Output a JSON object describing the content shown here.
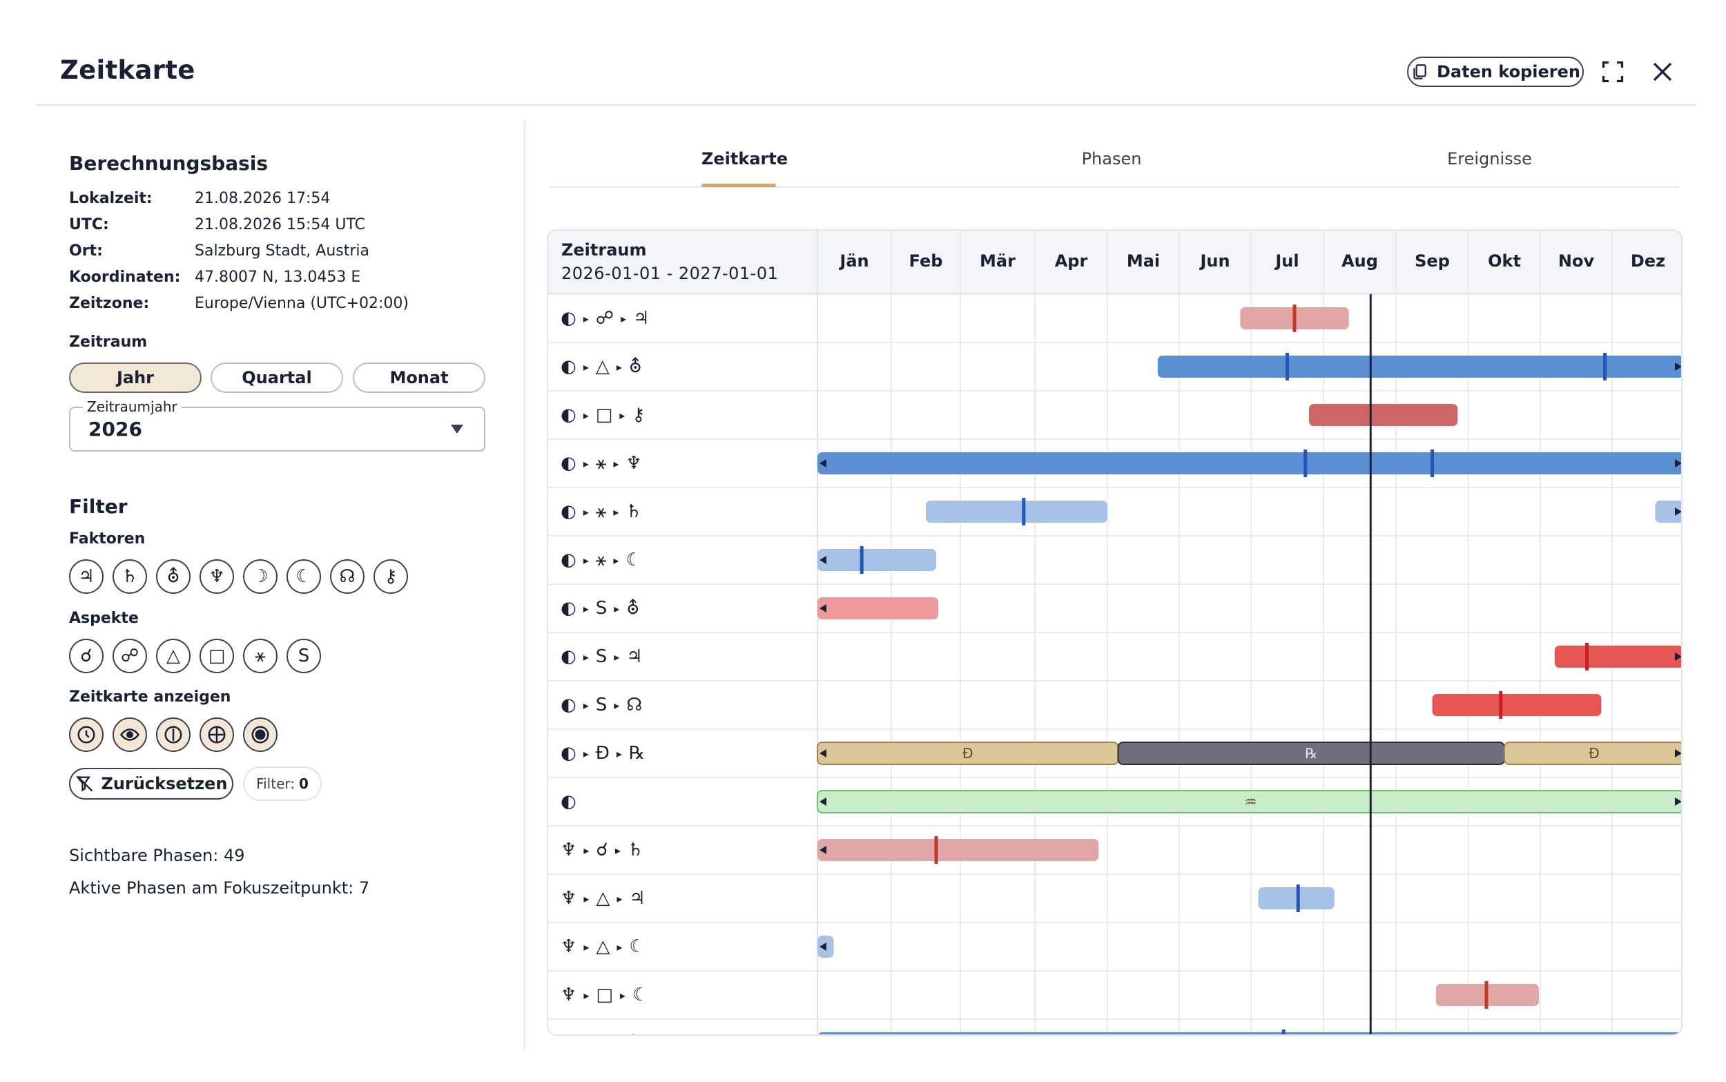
{
  "header": {
    "title": "Zeitkarte",
    "copy_label": "Daten kopieren"
  },
  "basis": {
    "title": "Berechnungsbasis",
    "rows": [
      {
        "label": "Lokalzeit:",
        "value": "21.08.2026 17:54"
      },
      {
        "label": "UTC:",
        "value": "21.08.2026 15:54 UTC"
      },
      {
        "label": "Ort:",
        "value": "Salzburg Stadt, Austria"
      },
      {
        "label": "Koordinaten:",
        "value": "47.8007 N, 13.0453 E"
      },
      {
        "label": "Zeitzone:",
        "value": "Europe/Vienna (UTC+02:00)"
      }
    ]
  },
  "zeitraum": {
    "title": "Zeitraum",
    "options": [
      "Jahr",
      "Quartal",
      "Monat"
    ],
    "active": "Jahr",
    "select_legend": "Zeitraumjahr",
    "select_value": "2026"
  },
  "filter": {
    "title": "Filter",
    "faktoren_title": "Faktoren",
    "faktoren": [
      "♃",
      "♄",
      "⛢",
      "♆",
      "☽",
      "☾",
      "☊",
      "⚷"
    ],
    "aspekte_title": "Aspekte",
    "aspekte": [
      "☌",
      "☍",
      "△",
      "□",
      "⚹",
      "S"
    ],
    "anzeigen_title": "Zeitkarte anzeigen",
    "anzeigen_icons": [
      "clock-icon",
      "eye-icon",
      "info-icon",
      "crosshair-icon",
      "target-icon"
    ],
    "reset_label": "Zurücksetzen",
    "badge_label": "Filter:",
    "badge_count": "0"
  },
  "stats": {
    "visible": "Sichtbare Phasen: 49",
    "active": "Aktive Phasen am Fokuszeitpunkt: 7"
  },
  "tabs": [
    {
      "label": "Zeitkarte",
      "active": true
    },
    {
      "label": "Phasen",
      "active": false
    },
    {
      "label": "Ereignisse",
      "active": false
    }
  ],
  "colors": {
    "blue": "#5b8fd4",
    "blue_light": "#a8c1e6",
    "red": "#cf6666",
    "red_light": "#e0a6a6",
    "red_bright": "#e85555",
    "tan": "#dcc696",
    "gray": "#6f6f7e",
    "green": "#c8ecc8",
    "accent": "#d6a56a"
  },
  "chart_data": {
    "type": "gantt",
    "period_title": "Zeitraum",
    "period_range": "2026-01-01 - 2027-01-01",
    "months": [
      "Jän",
      "Feb",
      "Mär",
      "Apr",
      "Mai",
      "Jun",
      "Jul",
      "Aug",
      "Sep",
      "Okt",
      "Nov",
      "Dez"
    ],
    "focus_month": 7.65,
    "rows": [
      {
        "label": [
          "◐",
          "☍",
          "♃"
        ],
        "bars": [
          {
            "start": 5.85,
            "end": 7.35,
            "color": "red_light",
            "marks": [
              6.6
            ],
            "mark_color": "#c0392b"
          }
        ]
      },
      {
        "label": [
          "◐",
          "△",
          "⛢"
        ],
        "bars": [
          {
            "start": 4.7,
            "end": 12.0,
            "color": "blue",
            "marks": [
              6.5,
              10.9
            ],
            "mark_color": "#2456b8",
            "arrow_right": true
          }
        ]
      },
      {
        "label": [
          "◐",
          "□",
          "⚷"
        ],
        "bars": [
          {
            "start": 6.8,
            "end": 8.85,
            "color": "red",
            "marks": []
          }
        ]
      },
      {
        "label": [
          "◐",
          "⚹",
          "♆"
        ],
        "bars": [
          {
            "start": 0.0,
            "end": 12.0,
            "color": "blue",
            "marks": [
              6.75,
              8.5
            ],
            "mark_color": "#2456b8",
            "arrow_left": true,
            "arrow_right": true
          }
        ]
      },
      {
        "label": [
          "◐",
          "⚹",
          "♄"
        ],
        "bars": [
          {
            "start": 1.5,
            "end": 4.0,
            "color": "blue_light",
            "marks": [
              2.85
            ],
            "mark_color": "#2456b8"
          },
          {
            "start": 11.6,
            "end": 12.0,
            "color": "blue_light",
            "marks": [],
            "arrow_right": true
          }
        ]
      },
      {
        "label": [
          "◐",
          "⚹",
          "☾"
        ],
        "bars": [
          {
            "start": 0.0,
            "end": 1.65,
            "color": "blue_light",
            "marks": [
              0.6
            ],
            "mark_color": "#2456b8",
            "arrow_left": true
          }
        ]
      },
      {
        "label": [
          "◐",
          "S",
          "⛢"
        ],
        "bars": [
          {
            "start": 0.0,
            "end": 1.68,
            "color": "red_light2",
            "marks": [],
            "arrow_left": true
          }
        ]
      },
      {
        "label": [
          "◐",
          "S",
          "♃"
        ],
        "bars": [
          {
            "start": 10.2,
            "end": 12.0,
            "color": "red_bright",
            "marks": [
              10.65
            ],
            "mark_color": "#c82020",
            "arrow_right": true
          }
        ]
      },
      {
        "label": [
          "◐",
          "S",
          "☊"
        ],
        "bars": [
          {
            "start": 8.5,
            "end": 10.85,
            "color": "red_bright",
            "marks": [
              9.45
            ],
            "mark_color": "#c82020"
          }
        ]
      },
      {
        "label": [
          "◐",
          "Ɖ",
          "℞"
        ],
        "bars": [
          {
            "start": 0.0,
            "end": 4.15,
            "color": "tan",
            "text": "Ɖ",
            "marks": [],
            "arrow_left": true
          },
          {
            "start": 4.15,
            "end": 9.5,
            "color": "gray",
            "text": "℞",
            "marks": []
          },
          {
            "start": 9.5,
            "end": 12.0,
            "color": "tan",
            "text": "Ɖ",
            "marks": [],
            "arrow_right": true
          }
        ]
      },
      {
        "label": [
          "◐"
        ],
        "bars": [
          {
            "start": 0.0,
            "end": 12.0,
            "color": "green",
            "text": "♒",
            "marks": [],
            "arrow_left": true,
            "arrow_right": true
          }
        ]
      },
      {
        "label": [
          "♆",
          "☌",
          "♄"
        ],
        "bars": [
          {
            "start": 0.0,
            "end": 3.88,
            "color": "red_light",
            "marks": [
              1.65
            ],
            "mark_color": "#c0392b",
            "arrow_left": true
          }
        ]
      },
      {
        "label": [
          "♆",
          "△",
          "♃"
        ],
        "bars": [
          {
            "start": 6.1,
            "end": 7.15,
            "color": "blue_light",
            "marks": [
              6.65
            ],
            "mark_color": "#2456b8"
          }
        ]
      },
      {
        "label": [
          "♆",
          "△",
          "☾"
        ],
        "bars": [
          {
            "start": 0.0,
            "end": 0.22,
            "color": "blue_light",
            "marks": [],
            "arrow_left": true
          }
        ]
      },
      {
        "label": [
          "♆",
          "□",
          "☾"
        ],
        "bars": [
          {
            "start": 8.55,
            "end": 9.98,
            "color": "red_light",
            "marks": [
              9.25
            ],
            "mark_color": "#c0392b"
          }
        ]
      },
      {
        "label": [
          "♆",
          "⚹",
          "⛢"
        ],
        "bars": [
          {
            "start": 0.0,
            "end": 12.0,
            "color": "blue",
            "marks": [
              6.45
            ],
            "mark_color": "#2456b8"
          }
        ]
      }
    ]
  }
}
